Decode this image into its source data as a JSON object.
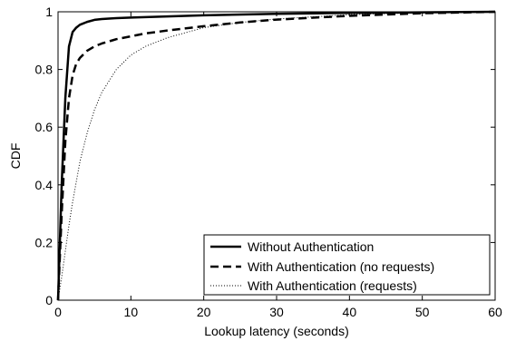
{
  "chart_data": {
    "type": "line",
    "xlabel": "Lookup latency (seconds)",
    "ylabel": "CDF",
    "xlim": [
      0,
      60
    ],
    "ylim": [
      0,
      1
    ],
    "xticks": [
      "0",
      "10",
      "20",
      "30",
      "40",
      "50",
      "60"
    ],
    "yticks": [
      "0",
      "0.2",
      "0.4",
      "0.6",
      "0.8",
      "1"
    ],
    "grid": false,
    "legend_position": "bottom-right",
    "series": [
      {
        "name": "Without Authentication",
        "style": "solid",
        "x": [
          0,
          0.5,
          1,
          1.5,
          2,
          2.5,
          3,
          4,
          5,
          6,
          8,
          10,
          15,
          20,
          30,
          40,
          50,
          60
        ],
        "y": [
          0,
          0.4,
          0.7,
          0.88,
          0.93,
          0.945,
          0.955,
          0.965,
          0.972,
          0.975,
          0.978,
          0.98,
          0.984,
          0.988,
          0.993,
          0.996,
          0.998,
          1.0
        ]
      },
      {
        "name": "With Authentication (no requests)",
        "style": "dashed",
        "x": [
          0,
          0.5,
          1,
          1.5,
          2,
          2.5,
          3,
          4,
          5,
          6,
          8,
          10,
          12,
          15,
          20,
          25,
          30,
          40,
          50,
          60
        ],
        "y": [
          0,
          0.3,
          0.55,
          0.7,
          0.78,
          0.82,
          0.84,
          0.865,
          0.88,
          0.89,
          0.905,
          0.915,
          0.925,
          0.935,
          0.95,
          0.963,
          0.973,
          0.986,
          0.995,
          1.0
        ]
      },
      {
        "name": "With Authentication (requests)",
        "style": "dotted",
        "x": [
          0,
          0.5,
          1,
          1.5,
          2,
          3,
          4,
          5,
          6,
          7,
          8,
          10,
          12,
          15,
          20,
          25,
          30,
          40,
          50,
          60
        ],
        "y": [
          0,
          0.08,
          0.17,
          0.26,
          0.34,
          0.48,
          0.58,
          0.66,
          0.72,
          0.76,
          0.8,
          0.85,
          0.88,
          0.91,
          0.945,
          0.963,
          0.975,
          0.99,
          0.997,
          1.0
        ]
      }
    ]
  }
}
